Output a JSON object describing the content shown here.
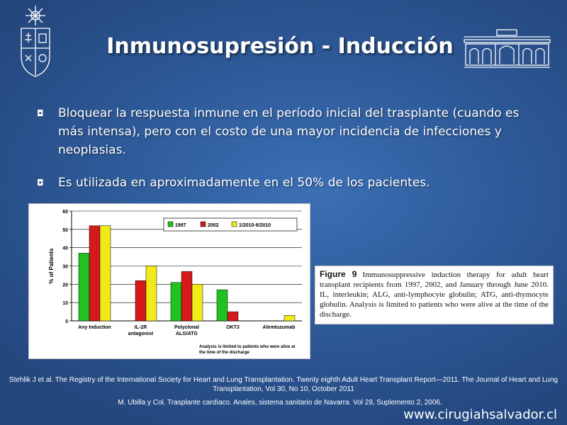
{
  "title": "Inmunosupresión - Inducción",
  "bullets": [
    "Bloquear la respuesta inmune en el período inicial del trasplante (cuando es más intensa), pero con el costo de una mayor incidencia de infecciones y neoplasias.",
    "Es utilizada en aproximadamente en el 50% de los pacientes."
  ],
  "bullet_marker": "◘",
  "chart_data": {
    "type": "bar",
    "categories": [
      [
        "Any Induction"
      ],
      [
        "IL-2R",
        "antagonist"
      ],
      [
        "Polyclonal",
        "ALG/ATG"
      ],
      [
        "OKT3"
      ],
      [
        "Alemtuzumab"
      ]
    ],
    "series": [
      {
        "name": "1997",
        "color": "#1fc21f",
        "values": [
          37,
          0,
          21,
          17,
          0
        ]
      },
      {
        "name": "2002",
        "color": "#d41a1a",
        "values": [
          52,
          22,
          27,
          5,
          0
        ]
      },
      {
        "name": "1/2010-6/2010",
        "color": "#f0ea1a",
        "values": [
          52,
          30,
          20,
          0,
          3
        ]
      }
    ],
    "ylabel": "% of Patients",
    "ylim": [
      0,
      60
    ],
    "yticks": [
      0,
      10,
      20,
      30,
      40,
      50,
      60
    ],
    "grid": true,
    "legend": "top-right",
    "note": [
      "Analysis is limited to patients who were alive at",
      "the time of the discharge"
    ]
  },
  "caption": {
    "figure_label": "Figure 9",
    "text": "Immunosuppressive induction therapy for adult heart transplant recipients from 1997, 2002, and January through June 2010. IL, interleukin; ALG, anti-lymphocyte globulin; ATG, anti-thymocyte globulin. Analysis is limited to patients who were alive at the time of the discharge."
  },
  "references": {
    "ref1": "Stehlik J et al. The Registry of the International Society for Heart and Lung Transplantation. Twenty eighth Adult Heart Transplant Report—2011. The Journal of Heart and Lung Transplantation, Vol 30, No 10, October 2011",
    "ref2": "M. Ubilla y Col. Trasplante cardíaco. Anales, sistema sanitario de Navarra. Vol 29, Suplemento 2, 2006."
  },
  "website": "www.cirugiahsalvador.cl"
}
